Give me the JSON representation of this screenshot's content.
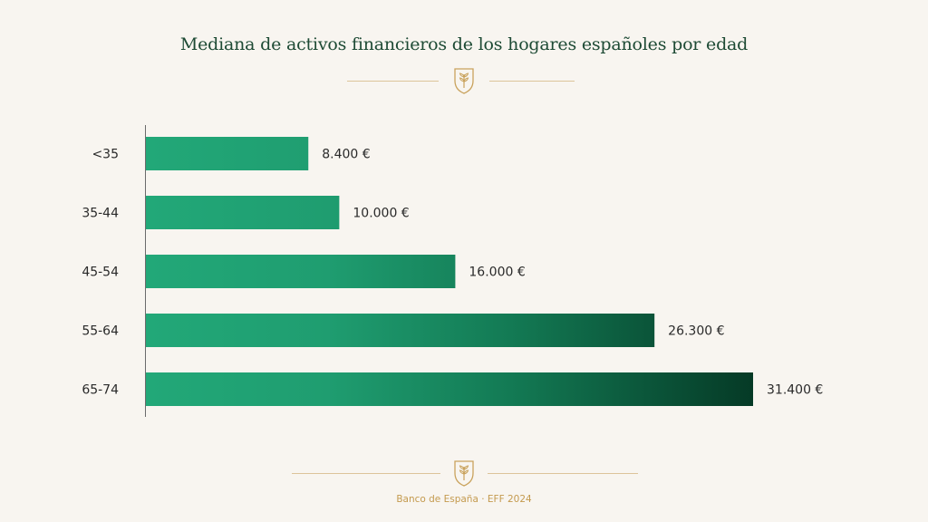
{
  "chart_data": {
    "type": "bar",
    "orientation": "horizontal",
    "title": "Mediana de activos financieros de los hogares españoles por edad",
    "categories": [
      "<35",
      "35-44",
      "45-54",
      "55-64",
      "65-74"
    ],
    "values": [
      8400,
      10000,
      16000,
      26300,
      31400
    ],
    "value_labels": [
      "8.400 €",
      "10.000 €",
      "16.000 €",
      "26.300 €",
      "31.400 €"
    ],
    "xlim": [
      0,
      31400
    ],
    "grid": false,
    "colors": {
      "bar_light": "#22a878",
      "bar_dark": "#053a26",
      "axis": "#6b6b6b"
    }
  },
  "header": {
    "ornament_icon": "shield-wheat-icon"
  },
  "footer": {
    "text": "Banco de España · EFF 2024",
    "ornament_icon": "shield-wheat-icon"
  }
}
